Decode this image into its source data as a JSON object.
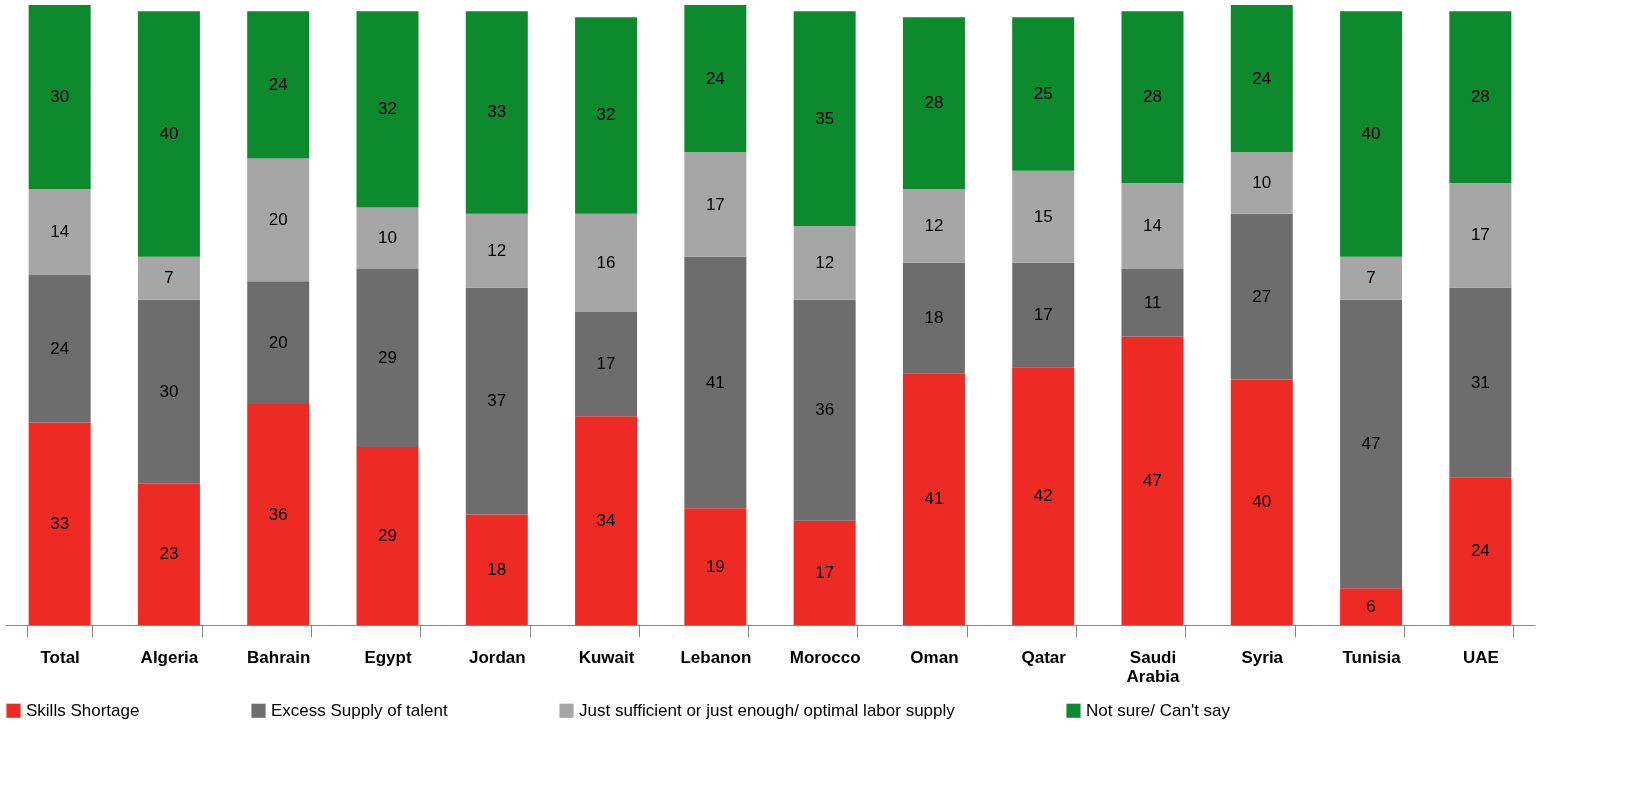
{
  "chart_data": {
    "type": "bar",
    "stacked": true,
    "data_labels": true,
    "legend": "bottom",
    "grid": false,
    "tick_labels": "x",
    "ylim": [
      0,
      101
    ],
    "categories": [
      "Total",
      "Algeria",
      "Bahrain",
      "Egypt",
      "Jordan",
      "Kuwait",
      "Lebanon",
      "Morocco",
      "Oman",
      "Qatar",
      "Saudi Arabia",
      "Syria",
      "Tunisia",
      "UAE"
    ],
    "series": [
      {
        "name": "Skills Shortage",
        "color": "#ee2a24",
        "values": [
          33,
          23,
          36,
          29,
          18,
          34,
          19,
          17,
          41,
          42,
          47,
          40,
          6,
          24
        ]
      },
      {
        "name": "Excess Supply of talent",
        "color": "#6d6d6d",
        "values": [
          24,
          30,
          20,
          29,
          37,
          17,
          41,
          36,
          18,
          17,
          11,
          27,
          47,
          31
        ]
      },
      {
        "name": "Just sufficient or just enough/ optimal labor supply",
        "color": "#a6a6a6",
        "values": [
          14,
          7,
          20,
          10,
          12,
          16,
          17,
          12,
          12,
          15,
          14,
          10,
          7,
          17
        ]
      },
      {
        "name": "Not sure/ Can't say",
        "color": "#0e8a2e",
        "values": [
          30,
          40,
          24,
          32,
          33,
          32,
          24,
          35,
          28,
          25,
          28,
          24,
          40,
          28
        ]
      }
    ]
  }
}
